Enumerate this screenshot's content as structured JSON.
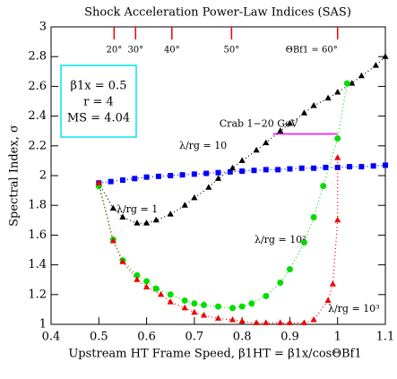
{
  "chart_data": {
    "type": "line",
    "title": "Shock Acceleration Power-Law Indices (SAS)",
    "x_label": "Upstream HT Frame Speed, β1HT = β1x/cosΘBf1",
    "y_label": "Spectral Index, σ",
    "xlim": [
      0.4,
      1.1
    ],
    "xticks": [
      0.4,
      0.5,
      0.6,
      0.7,
      0.8,
      0.9,
      1,
      1.1
    ],
    "ylim": [
      1,
      3
    ],
    "yticks": [
      1,
      1.2,
      1.4,
      1.6,
      1.8,
      2,
      2.2,
      2.4,
      2.6,
      2.8,
      3
    ],
    "top_ticks": [
      {
        "value": 0.532,
        "label": "20°"
      },
      {
        "value": 0.577,
        "label": "30°"
      },
      {
        "value": 0.653,
        "label": "40°"
      },
      {
        "value": 0.778,
        "label": "50°"
      },
      {
        "value": 1.0,
        "label": "ΘBf1 = 60°"
      }
    ],
    "info_box": [
      "β1x = 0.5",
      "r = 4",
      "MS = 4.04"
    ],
    "annotation": {
      "text": "Crab 1−20 GeV",
      "x": [
        0.865,
        1.0
      ],
      "y": 2.28,
      "color": "#ff00ff"
    },
    "series": [
      {
        "name": "λ/rg = 1",
        "color": "#0000ff",
        "marker": "square",
        "x": [
          0.5,
          0.525,
          0.55,
          0.575,
          0.6,
          0.625,
          0.65,
          0.675,
          0.7,
          0.725,
          0.75,
          0.775,
          0.8,
          0.825,
          0.85,
          0.875,
          0.9,
          0.925,
          0.95,
          0.975,
          1.0,
          1.025,
          1.05,
          1.075,
          1.1
        ],
        "values": [
          1.95,
          1.96,
          1.97,
          1.98,
          1.99,
          1.995,
          2.0,
          2.005,
          2.01,
          2.015,
          2.02,
          2.025,
          2.03,
          2.035,
          2.04,
          2.04,
          2.045,
          2.05,
          2.05,
          2.055,
          2.055,
          2.06,
          2.06,
          2.065,
          2.07
        ]
      },
      {
        "name": "λ/rg = 10",
        "color": "#000000",
        "marker": "triangle",
        "x": [
          0.5,
          0.53,
          0.55,
          0.58,
          0.6,
          0.62,
          0.65,
          0.68,
          0.7,
          0.73,
          0.75,
          0.78,
          0.8,
          0.83,
          0.85,
          0.88,
          0.9,
          0.93,
          0.95,
          0.98,
          1.0,
          1.03,
          1.05,
          1.08,
          1.1
        ],
        "values": [
          1.95,
          1.78,
          1.72,
          1.68,
          1.68,
          1.7,
          1.74,
          1.8,
          1.85,
          1.92,
          1.98,
          2.05,
          2.1,
          2.17,
          2.22,
          2.3,
          2.35,
          2.42,
          2.47,
          2.52,
          2.56,
          2.62,
          2.67,
          2.74,
          2.8
        ]
      },
      {
        "name": "λ/rg = 10²",
        "color": "#00dd00",
        "marker": "circle",
        "x": [
          0.5,
          0.53,
          0.55,
          0.58,
          0.6,
          0.62,
          0.65,
          0.68,
          0.7,
          0.72,
          0.75,
          0.78,
          0.8,
          0.82,
          0.85,
          0.88,
          0.9,
          0.93,
          0.95,
          0.97,
          1.0,
          1.02
        ],
        "values": [
          1.93,
          1.57,
          1.43,
          1.33,
          1.29,
          1.24,
          1.2,
          1.16,
          1.14,
          1.13,
          1.12,
          1.11,
          1.12,
          1.14,
          1.19,
          1.28,
          1.37,
          1.55,
          1.72,
          1.93,
          2.25,
          2.62
        ]
      },
      {
        "name": "λ/rg = 10³",
        "color": "#ee0000",
        "marker": "triangle",
        "x": [
          0.5,
          0.53,
          0.55,
          0.58,
          0.6,
          0.63,
          0.65,
          0.68,
          0.7,
          0.72,
          0.75,
          0.78,
          0.8,
          0.83,
          0.85,
          0.88,
          0.9,
          0.93,
          0.95,
          0.98,
          0.99,
          1.0,
          1.0
        ],
        "values": [
          1.95,
          1.56,
          1.42,
          1.3,
          1.25,
          1.2,
          1.15,
          1.11,
          1.08,
          1.06,
          1.04,
          1.03,
          1.02,
          1.01,
          1.01,
          1.01,
          1.01,
          1.01,
          1.03,
          1.16,
          1.27,
          1.7,
          2.12
        ]
      }
    ]
  }
}
